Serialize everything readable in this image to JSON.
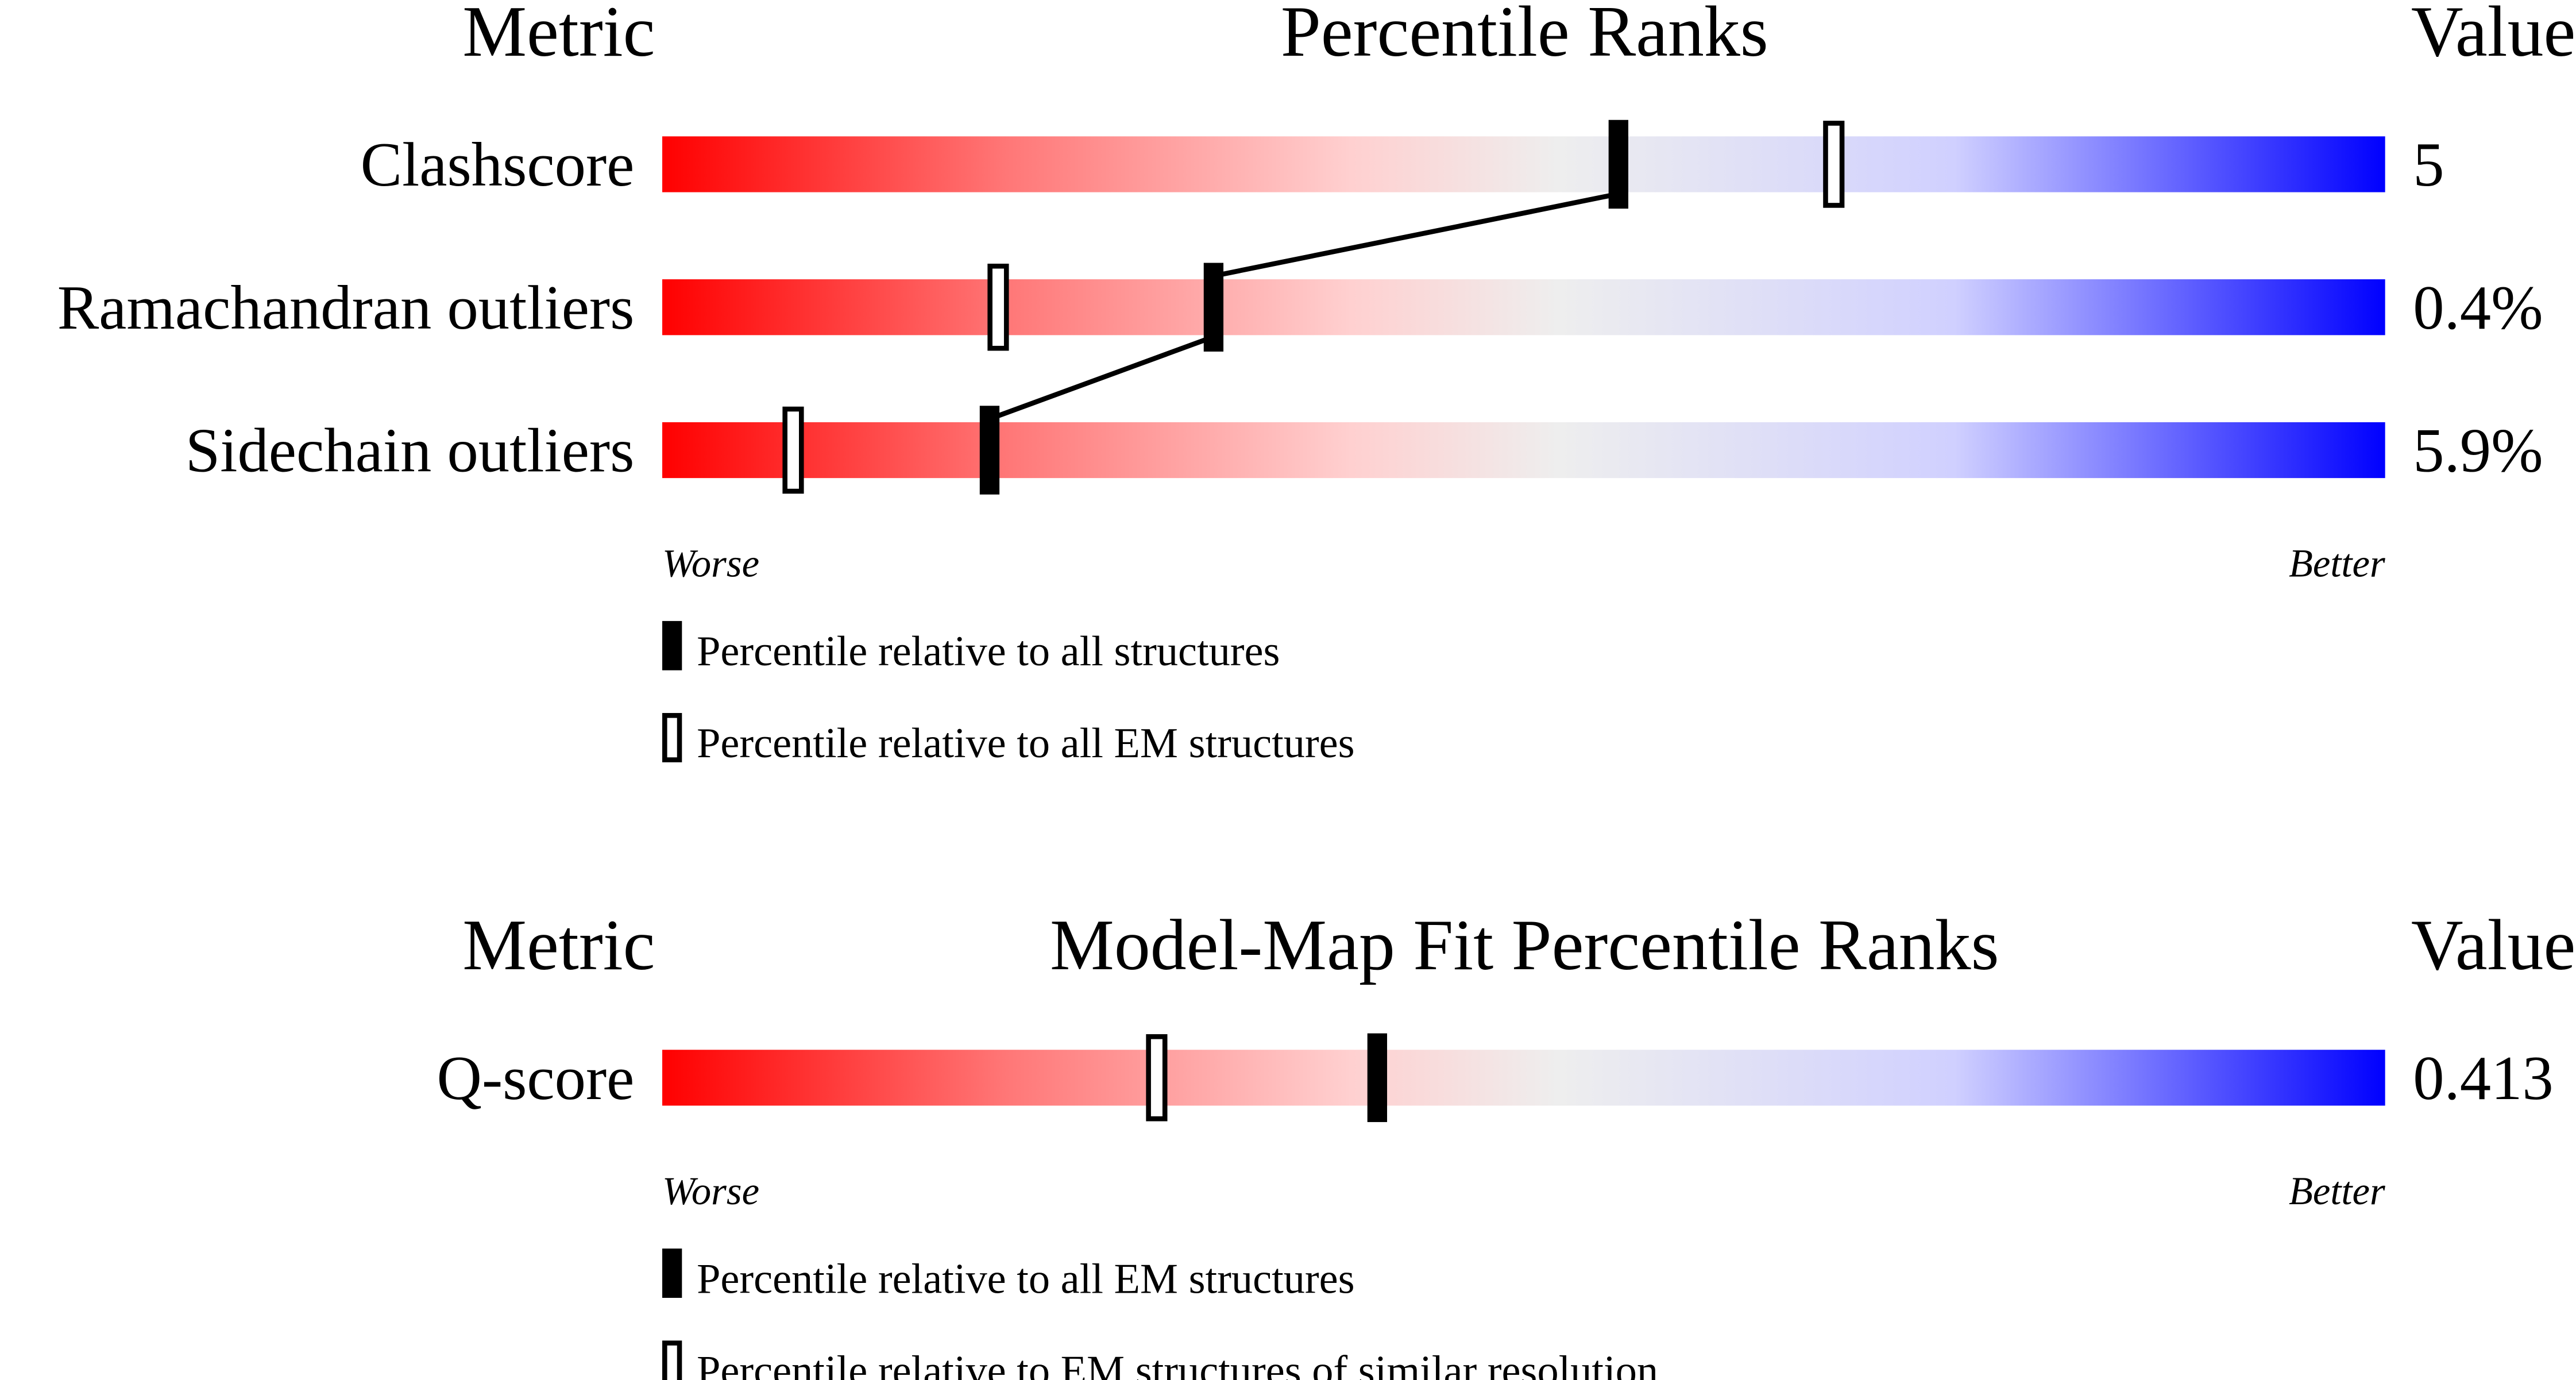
{
  "colors": {
    "worse": "#ff0000",
    "middle": "#eeeeee",
    "better": "#0000ff",
    "marker": "#000000"
  },
  "chart_data": [
    {
      "type": "percentile-bar",
      "headers": {
        "metric": "Metric",
        "title": "Percentile Ranks",
        "value": "Value"
      },
      "axis": {
        "left_label": "Worse",
        "right_label": "Better",
        "range": [
          0,
          100
        ]
      },
      "rows": [
        {
          "metric": "Clashscore",
          "value": "5",
          "percentile_all": 55.5,
          "percentile_em": 68
        },
        {
          "metric": "Ramachandran outliers",
          "value": "0.4%",
          "percentile_all": 32,
          "percentile_em": 19.5
        },
        {
          "metric": "Sidechain outliers",
          "value": "5.9%",
          "percentile_all": 19,
          "percentile_em": 7.6
        }
      ],
      "connect_filled_markers": true,
      "legend": [
        {
          "marker": "filled",
          "label": "Percentile relative to all structures"
        },
        {
          "marker": "hollow",
          "label": "Percentile relative to all EM structures"
        }
      ]
    },
    {
      "type": "percentile-bar",
      "headers": {
        "metric": "Metric",
        "title": "Model-Map Fit Percentile Ranks",
        "value": "Value"
      },
      "axis": {
        "left_label": "Worse",
        "right_label": "Better",
        "range": [
          0,
          100
        ]
      },
      "rows": [
        {
          "metric": "Q-score",
          "value": "0.413",
          "percentile_all": 41.5,
          "percentile_em": 28.7
        }
      ],
      "connect_filled_markers": false,
      "legend": [
        {
          "marker": "filled",
          "label": "Percentile relative to all EM structures"
        },
        {
          "marker": "hollow",
          "label": "Percentile relative to EM structures of similar resolution"
        }
      ]
    }
  ]
}
